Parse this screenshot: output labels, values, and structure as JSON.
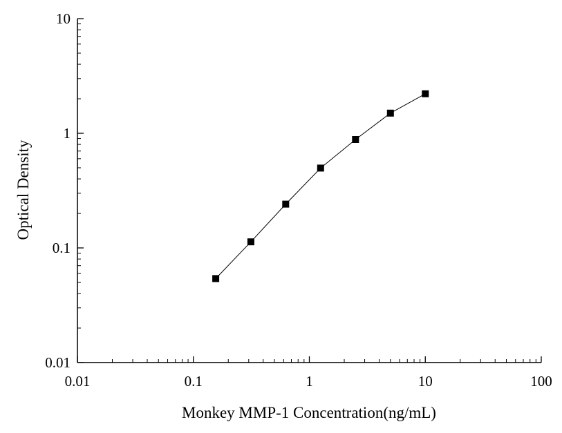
{
  "chart_data": {
    "type": "scatter",
    "title": "",
    "xlabel": "Monkey MMP-1 Concentration(ng/mL)",
    "ylabel": "Optical Density",
    "x_scale": "log",
    "y_scale": "log",
    "xlim": [
      0.01,
      100
    ],
    "ylim": [
      0.01,
      10
    ],
    "x_ticks": [
      0.01,
      0.1,
      1,
      10,
      100
    ],
    "x_tick_labels": [
      "0.01",
      "0.1",
      "1",
      "10",
      "100"
    ],
    "y_ticks": [
      0.01,
      0.1,
      1,
      10
    ],
    "y_tick_labels": [
      "0.01",
      "0.1",
      "1",
      "10"
    ],
    "grid": false,
    "series": [
      {
        "x": [
          0.156,
          0.313,
          0.625,
          1.25,
          2.5,
          5,
          10
        ],
        "y": [
          0.054,
          0.113,
          0.241,
          0.497,
          0.883,
          1.5,
          2.21
        ],
        "marker": "square",
        "connect": true,
        "color": "#000000"
      }
    ]
  }
}
